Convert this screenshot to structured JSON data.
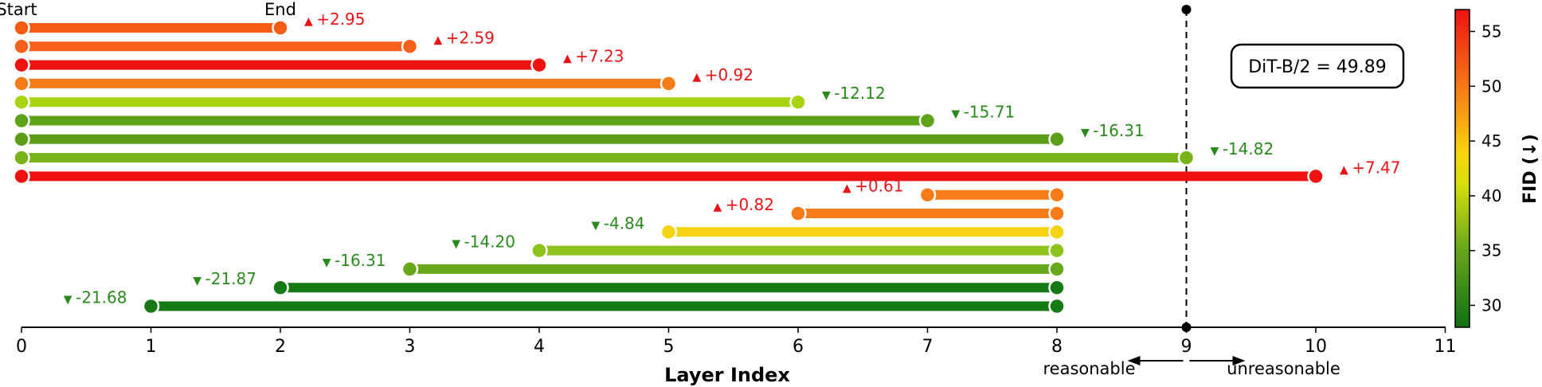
{
  "chart_data": {
    "type": "range-bar",
    "xlabel": "Layer Index",
    "x_ticks": [
      0,
      1,
      2,
      3,
      4,
      5,
      6,
      7,
      8,
      9,
      10,
      11
    ],
    "xlim": [
      0,
      11
    ],
    "baseline": {
      "label": "DiT-B/2 = 49.89",
      "value": 49.89
    },
    "start_label": "Start",
    "end_label": "End",
    "threshold": {
      "x": 9,
      "left_label": "reasonable",
      "right_label": "unreasonable"
    },
    "colorbar": {
      "title": "FID (↓)",
      "range": [
        28,
        57
      ],
      "ticks": [
        30,
        35,
        40,
        45,
        50,
        55
      ]
    },
    "bars": [
      {
        "start": 0,
        "end": 2,
        "fid": 52.84,
        "delta": "+2.95",
        "direction": "up",
        "color": "#f35c12"
      },
      {
        "start": 0,
        "end": 3,
        "fid": 52.48,
        "delta": "+2.59",
        "direction": "up",
        "color": "#f5601a"
      },
      {
        "start": 0,
        "end": 4,
        "fid": 57.12,
        "delta": "+7.23",
        "direction": "up",
        "color": "#ee1211"
      },
      {
        "start": 0,
        "end": 5,
        "fid": 50.81,
        "delta": "+0.92",
        "direction": "up",
        "color": "#f77c18"
      },
      {
        "start": 0,
        "end": 6,
        "fid": 37.77,
        "delta": "-12.12",
        "direction": "down",
        "color": "#a8d412"
      },
      {
        "start": 0,
        "end": 7,
        "fid": 34.18,
        "delta": "-15.71",
        "direction": "down",
        "color": "#5fa31b"
      },
      {
        "start": 0,
        "end": 8,
        "fid": 33.58,
        "delta": "-16.31",
        "direction": "down",
        "color": "#5c9d1a"
      },
      {
        "start": 0,
        "end": 9,
        "fid": 35.07,
        "delta": "-14.82",
        "direction": "down",
        "color": "#78b31a"
      },
      {
        "start": 0,
        "end": 10,
        "fid": 57.36,
        "delta": "+7.47",
        "direction": "up",
        "color": "#ee1211"
      },
      {
        "start": 7,
        "end": 8,
        "fid": 50.5,
        "delta": "+0.61",
        "direction": "up",
        "color": "#f77b16"
      },
      {
        "start": 6,
        "end": 8,
        "fid": 50.71,
        "delta": "+0.82",
        "direction": "up",
        "color": "#f77b16"
      },
      {
        "start": 5,
        "end": 8,
        "fid": 45.05,
        "delta": "-4.84",
        "direction": "down",
        "color": "#f5d310"
      },
      {
        "start": 4,
        "end": 8,
        "fid": 35.69,
        "delta": "-14.20",
        "direction": "down",
        "color": "#8cc219"
      },
      {
        "start": 3,
        "end": 8,
        "fid": 33.58,
        "delta": "-16.31",
        "direction": "down",
        "color": "#66a81a"
      },
      {
        "start": 2,
        "end": 8,
        "fid": 28.02,
        "delta": "-21.87",
        "direction": "down",
        "color": "#157a14"
      },
      {
        "start": 1,
        "end": 8,
        "fid": 28.21,
        "delta": "-21.68",
        "direction": "down",
        "color": "#157a14"
      }
    ]
  },
  "colors": {
    "up": "#e8141a",
    "down": "#2a8a1e",
    "bar_dark": "#157a14"
  }
}
